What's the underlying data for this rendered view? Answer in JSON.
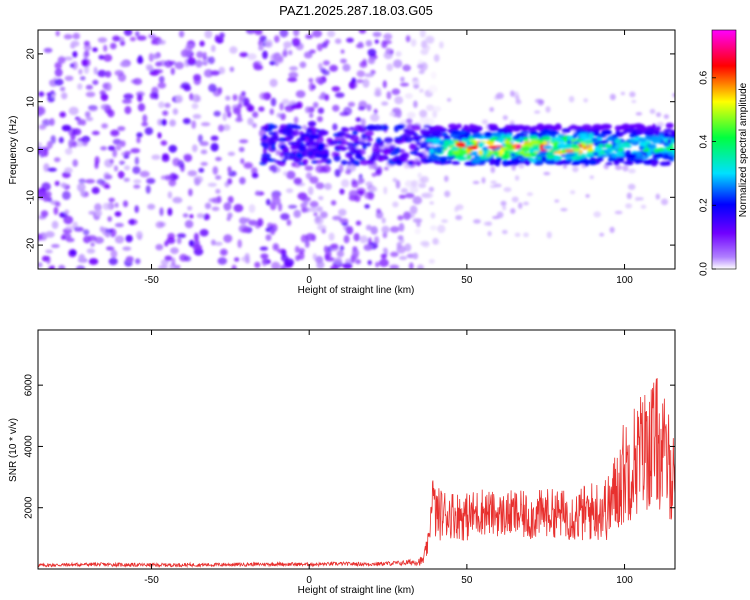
{
  "figure": {
    "title": "PAZ1.2025.287.18.03.G05"
  },
  "chart_data": [
    {
      "type": "heatmap",
      "title": "PAZ1.2025.287.18.03.G05",
      "xlabel": "Height of straight line (km)",
      "ylabel": "Frequency (Hz)",
      "xlim": [
        -86,
        116
      ],
      "ylim": [
        -25,
        25
      ],
      "xticks": [
        -50,
        0,
        50,
        100
      ],
      "yticks": [
        -20,
        -10,
        0,
        10,
        20
      ],
      "colorbar": {
        "label": "Normalized spectral amplitude",
        "range": [
          0,
          0.75
        ],
        "ticks": [
          0.0,
          0.2,
          0.4,
          0.6
        ],
        "colormap": [
          "#ff00ff",
          "#ff0000",
          "#ffff00",
          "#00ff00",
          "#00ffff",
          "#0000ff",
          "#8000ff",
          "#ffffff"
        ]
      },
      "description_values": {
        "noise_region_x": [
          -86,
          38
        ],
        "noise_amplitude": [
          0.05,
          0.15
        ],
        "signal_band_x": [
          38,
          116
        ],
        "signal_band_center_hz": 1,
        "signal_band_halfwidth_hz": 4,
        "signal_peak_amplitude": 0.7,
        "signal_peak_x": [
          45,
          90
        ]
      }
    },
    {
      "type": "line",
      "xlabel": "Height of straight line (km)",
      "ylabel": "SNR (10 * v/v)",
      "xlim": [
        -86,
        116
      ],
      "ylim": [
        0,
        7800
      ],
      "xticks": [
        -50,
        0,
        50,
        100
      ],
      "yticks": [
        2000,
        4000,
        6000
      ],
      "line_color": "#e8302e",
      "series": [
        {
          "x": [
            -86,
            -70,
            -50,
            -30,
            -10,
            0,
            10,
            20,
            30,
            36,
            38,
            39,
            40,
            45,
            50,
            55,
            60,
            65,
            70,
            75,
            80,
            85,
            90,
            95,
            100,
            105,
            110,
            116
          ],
          "y": [
            120,
            150,
            130,
            140,
            160,
            150,
            170,
            160,
            200,
            260,
            900,
            2600,
            1800,
            1800,
            1700,
            1900,
            1750,
            1800,
            1700,
            1850,
            1800,
            1750,
            1900,
            2000,
            3200,
            3800,
            4200,
            3000
          ],
          "noise_amplitude": [
            60,
            60,
            60,
            60,
            60,
            60,
            60,
            60,
            80,
            150,
            400,
            700,
            900,
            800,
            800,
            800,
            700,
            800,
            800,
            800,
            800,
            900,
            1000,
            1100,
            1800,
            2000,
            2200,
            1600
          ]
        }
      ]
    }
  ]
}
